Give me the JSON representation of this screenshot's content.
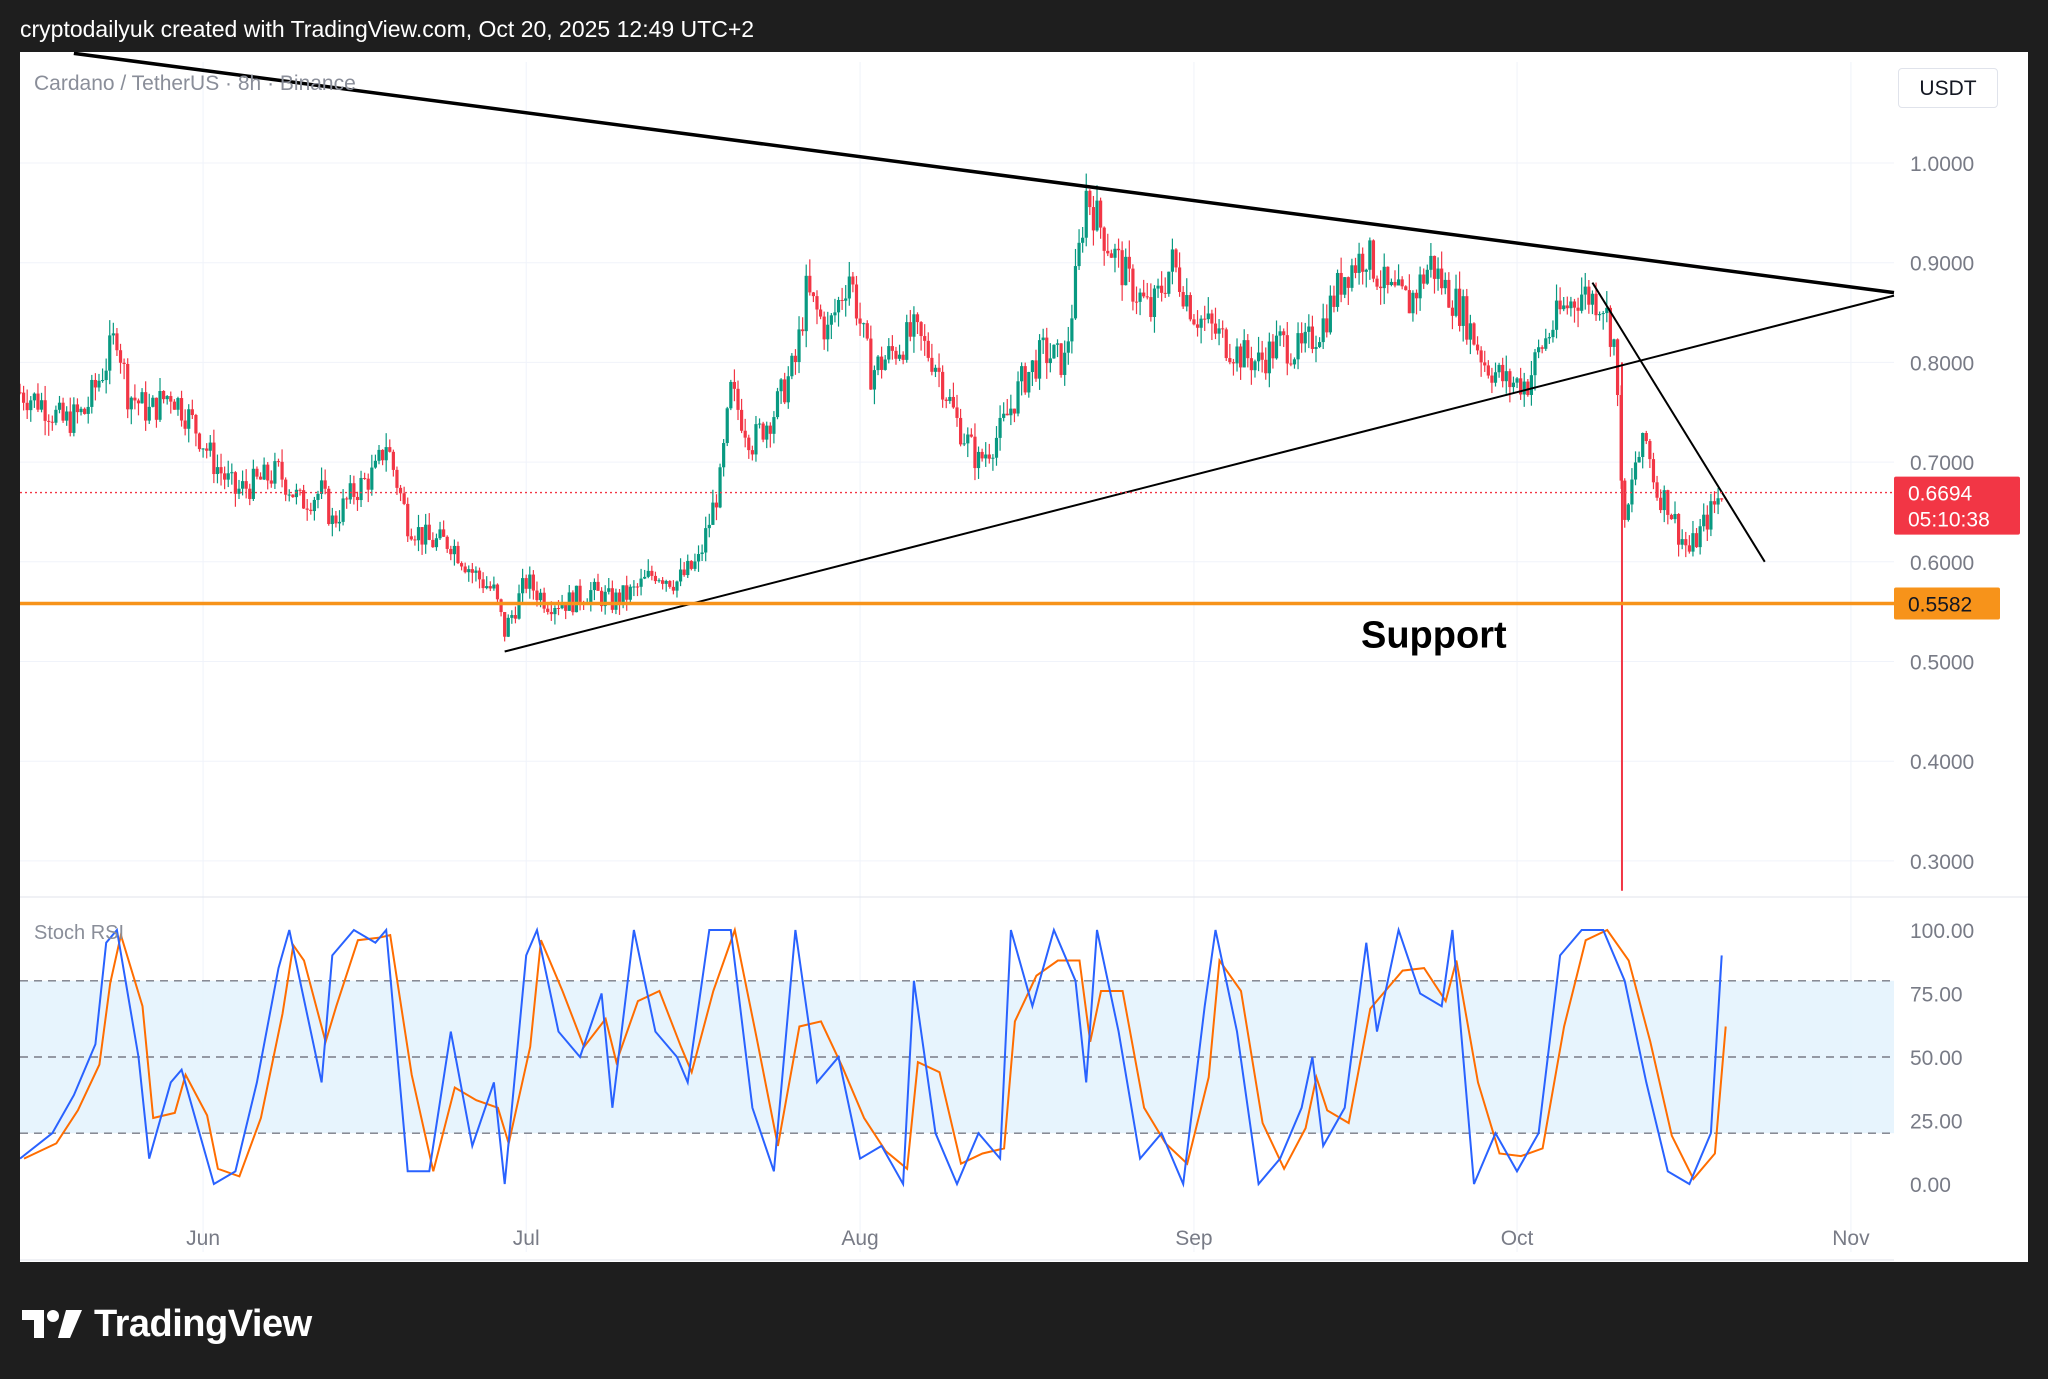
{
  "header": {
    "caption": "cryptodailyuk created with TradingView.com, Oct 20, 2025 12:49 UTC+2"
  },
  "footer": {
    "brand": "TradingView"
  },
  "chart_data": {
    "type": "candlestick",
    "symbol": "Cardano / TetherUS · 8h · Binance",
    "currency": "USDT",
    "price_axis": {
      "range": [
        0.27,
        1.06
      ],
      "ticks": [
        "1.0000",
        "0.9000",
        "0.8000",
        "0.7000",
        "0.6000",
        "0.5000",
        "0.4000",
        "0.3000"
      ]
    },
    "time_axis": {
      "range": [
        "2025-05-15",
        "2025-11-05"
      ],
      "ticks": [
        {
          "label": "Jun",
          "date": "2025-06-01"
        },
        {
          "label": "Jul",
          "date": "2025-07-01"
        },
        {
          "label": "Aug",
          "date": "2025-08-01"
        },
        {
          "label": "Sep",
          "date": "2025-09-01"
        },
        {
          "label": "Oct",
          "date": "2025-10-01"
        },
        {
          "label": "Nov",
          "date": "2025-11-01"
        }
      ]
    },
    "colors": {
      "up": "#089981",
      "down": "#f23645",
      "support": "#f7931a",
      "stoch_k": "#2962ff",
      "stoch_d": "#ff6d00"
    },
    "daily_close": [
      [
        "2025-05-15",
        0.77
      ],
      [
        "2025-05-17",
        0.76
      ],
      [
        "2025-05-19",
        0.74
      ],
      [
        "2025-05-21",
        0.75
      ],
      [
        "2025-05-23",
        0.8
      ],
      [
        "2025-05-24",
        0.83
      ],
      [
        "2025-05-25",
        0.77
      ],
      [
        "2025-05-27",
        0.75
      ],
      [
        "2025-05-29",
        0.77
      ],
      [
        "2025-05-31",
        0.74
      ],
      [
        "2025-06-02",
        0.7
      ],
      [
        "2025-06-04",
        0.67
      ],
      [
        "2025-06-06",
        0.68
      ],
      [
        "2025-06-08",
        0.69
      ],
      [
        "2025-06-10",
        0.66
      ],
      [
        "2025-06-12",
        0.67
      ],
      [
        "2025-06-13",
        0.64
      ],
      [
        "2025-06-15",
        0.67
      ],
      [
        "2025-06-17",
        0.69
      ],
      [
        "2025-06-18",
        0.72
      ],
      [
        "2025-06-20",
        0.64
      ],
      [
        "2025-06-22",
        0.62
      ],
      [
        "2025-06-24",
        0.62
      ],
      [
        "2025-06-26",
        0.59
      ],
      [
        "2025-06-28",
        0.57
      ],
      [
        "2025-06-29",
        0.53
      ],
      [
        "2025-07-01",
        0.58
      ],
      [
        "2025-07-03",
        0.56
      ],
      [
        "2025-07-05",
        0.56
      ],
      [
        "2025-07-07",
        0.57
      ],
      [
        "2025-07-09",
        0.56
      ],
      [
        "2025-07-11",
        0.57
      ],
      [
        "2025-07-13",
        0.59
      ],
      [
        "2025-07-15",
        0.58
      ],
      [
        "2025-07-17",
        0.6
      ],
      [
        "2025-07-19",
        0.68
      ],
      [
        "2025-07-20",
        0.77
      ],
      [
        "2025-07-22",
        0.72
      ],
      [
        "2025-07-24",
        0.75
      ],
      [
        "2025-07-26",
        0.8
      ],
      [
        "2025-07-27",
        0.87
      ],
      [
        "2025-07-29",
        0.83
      ],
      [
        "2025-07-31",
        0.89
      ],
      [
        "2025-08-02",
        0.79
      ],
      [
        "2025-08-04",
        0.81
      ],
      [
        "2025-08-06",
        0.83
      ],
      [
        "2025-08-08",
        0.8
      ],
      [
        "2025-08-10",
        0.74
      ],
      [
        "2025-08-12",
        0.7
      ],
      [
        "2025-08-14",
        0.73
      ],
      [
        "2025-08-16",
        0.78
      ],
      [
        "2025-08-18",
        0.81
      ],
      [
        "2025-08-20",
        0.8
      ],
      [
        "2025-08-21",
        0.88
      ],
      [
        "2025-08-22",
        0.97
      ],
      [
        "2025-08-24",
        0.92
      ],
      [
        "2025-08-26",
        0.88
      ],
      [
        "2025-08-28",
        0.85
      ],
      [
        "2025-08-30",
        0.9
      ],
      [
        "2025-09-01",
        0.85
      ],
      [
        "2025-09-03",
        0.83
      ],
      [
        "2025-09-05",
        0.81
      ],
      [
        "2025-09-07",
        0.8
      ],
      [
        "2025-09-09",
        0.82
      ],
      [
        "2025-09-11",
        0.81
      ],
      [
        "2025-09-13",
        0.84
      ],
      [
        "2025-09-15",
        0.89
      ],
      [
        "2025-09-17",
        0.91
      ],
      [
        "2025-09-19",
        0.87
      ],
      [
        "2025-09-21",
        0.86
      ],
      [
        "2025-09-23",
        0.9
      ],
      [
        "2025-09-24",
        0.88
      ],
      [
        "2025-09-26",
        0.85
      ],
      [
        "2025-09-28",
        0.8
      ],
      [
        "2025-09-30",
        0.78
      ],
      [
        "2025-10-02",
        0.78
      ],
      [
        "2025-10-03",
        0.81
      ],
      [
        "2025-10-05",
        0.85
      ],
      [
        "2025-10-07",
        0.87
      ],
      [
        "2025-10-09",
        0.86
      ],
      [
        "2025-10-10",
        0.82
      ],
      [
        "2025-10-11",
        0.63
      ],
      [
        "2025-10-12",
        0.7
      ],
      [
        "2025-10-13",
        0.72
      ],
      [
        "2025-10-14",
        0.67
      ],
      [
        "2025-10-15",
        0.66
      ],
      [
        "2025-10-16",
        0.63
      ],
      [
        "2025-10-17",
        0.61
      ],
      [
        "2025-10-18",
        0.63
      ],
      [
        "2025-10-19",
        0.65
      ],
      [
        "2025-10-20",
        0.6694
      ]
    ],
    "crash_wick": {
      "date": "2025-10-10",
      "low": 0.27
    },
    "trendlines": [
      {
        "name": "descending-resistance",
        "from": [
          "2025-05-20",
          1.11
        ],
        "to": [
          "2025-11-05",
          0.87
        ]
      },
      {
        "name": "ascending-support",
        "from": [
          "2025-06-29",
          0.51
        ],
        "to": [
          "2025-11-05",
          0.867
        ]
      },
      {
        "name": "short-term-downtrend",
        "from": [
          "2025-10-08",
          0.88
        ],
        "to": [
          "2025-10-24",
          0.6
        ]
      }
    ],
    "support": {
      "label": "Support",
      "price": "0.5582",
      "value": 0.5582
    },
    "last_price": {
      "value": "0.6694",
      "countdown": "05:10:38"
    },
    "indicator": {
      "name": "Stoch RSI",
      "ticks": [
        "100.00",
        "75.00",
        "50.00",
        "25.00",
        "0.00"
      ],
      "bands": [
        20,
        50,
        80
      ],
      "k": [
        [
          "2025-05-15",
          10
        ],
        [
          "2025-05-18",
          20
        ],
        [
          "2025-05-20",
          35
        ],
        [
          "2025-05-22",
          55
        ],
        [
          "2025-05-23",
          95
        ],
        [
          "2025-05-24",
          100
        ],
        [
          "2025-05-26",
          50
        ],
        [
          "2025-05-27",
          10
        ],
        [
          "2025-05-29",
          40
        ],
        [
          "2025-05-30",
          45
        ],
        [
          "2025-06-01",
          15
        ],
        [
          "2025-06-02",
          0
        ],
        [
          "2025-06-04",
          5
        ],
        [
          "2025-06-06",
          40
        ],
        [
          "2025-06-08",
          85
        ],
        [
          "2025-06-09",
          100
        ],
        [
          "2025-06-10",
          80
        ],
        [
          "2025-06-12",
          40
        ],
        [
          "2025-06-13",
          90
        ],
        [
          "2025-06-15",
          100
        ],
        [
          "2025-06-17",
          95
        ],
        [
          "2025-06-18",
          100
        ],
        [
          "2025-06-20",
          5
        ],
        [
          "2025-06-22",
          5
        ],
        [
          "2025-06-24",
          60
        ],
        [
          "2025-06-26",
          15
        ],
        [
          "2025-06-28",
          40
        ],
        [
          "2025-06-29",
          0
        ],
        [
          "2025-07-01",
          90
        ],
        [
          "2025-07-02",
          100
        ],
        [
          "2025-07-04",
          60
        ],
        [
          "2025-07-06",
          50
        ],
        [
          "2025-07-08",
          75
        ],
        [
          "2025-07-09",
          30
        ],
        [
          "2025-07-11",
          100
        ],
        [
          "2025-07-13",
          60
        ],
        [
          "2025-07-15",
          50
        ],
        [
          "2025-07-16",
          40
        ],
        [
          "2025-07-18",
          100
        ],
        [
          "2025-07-20",
          100
        ],
        [
          "2025-07-22",
          30
        ],
        [
          "2025-07-24",
          5
        ],
        [
          "2025-07-26",
          100
        ],
        [
          "2025-07-28",
          40
        ],
        [
          "2025-07-30",
          50
        ],
        [
          "2025-08-01",
          10
        ],
        [
          "2025-08-03",
          15
        ],
        [
          "2025-08-05",
          0
        ],
        [
          "2025-08-06",
          80
        ],
        [
          "2025-08-08",
          20
        ],
        [
          "2025-08-10",
          0
        ],
        [
          "2025-08-12",
          20
        ],
        [
          "2025-08-14",
          10
        ],
        [
          "2025-08-15",
          100
        ],
        [
          "2025-08-17",
          70
        ],
        [
          "2025-08-19",
          100
        ],
        [
          "2025-08-21",
          80
        ],
        [
          "2025-08-22",
          40
        ],
        [
          "2025-08-23",
          100
        ],
        [
          "2025-08-25",
          60
        ],
        [
          "2025-08-27",
          10
        ],
        [
          "2025-08-29",
          20
        ],
        [
          "2025-08-31",
          0
        ],
        [
          "2025-09-02",
          70
        ],
        [
          "2025-09-03",
          100
        ],
        [
          "2025-09-05",
          60
        ],
        [
          "2025-09-07",
          0
        ],
        [
          "2025-09-09",
          10
        ],
        [
          "2025-09-11",
          30
        ],
        [
          "2025-09-12",
          50
        ],
        [
          "2025-09-13",
          15
        ],
        [
          "2025-09-15",
          30
        ],
        [
          "2025-09-17",
          95
        ],
        [
          "2025-09-18",
          60
        ],
        [
          "2025-09-20",
          100
        ],
        [
          "2025-09-22",
          75
        ],
        [
          "2025-09-24",
          70
        ],
        [
          "2025-09-25",
          100
        ],
        [
          "2025-09-27",
          0
        ],
        [
          "2025-09-29",
          20
        ],
        [
          "2025-10-01",
          5
        ],
        [
          "2025-10-03",
          20
        ],
        [
          "2025-10-05",
          90
        ],
        [
          "2025-10-07",
          100
        ],
        [
          "2025-10-09",
          100
        ],
        [
          "2025-10-11",
          80
        ],
        [
          "2025-10-13",
          40
        ],
        [
          "2025-10-15",
          5
        ],
        [
          "2025-10-17",
          0
        ],
        [
          "2025-10-19",
          20
        ],
        [
          "2025-10-20",
          90
        ]
      ]
    }
  }
}
